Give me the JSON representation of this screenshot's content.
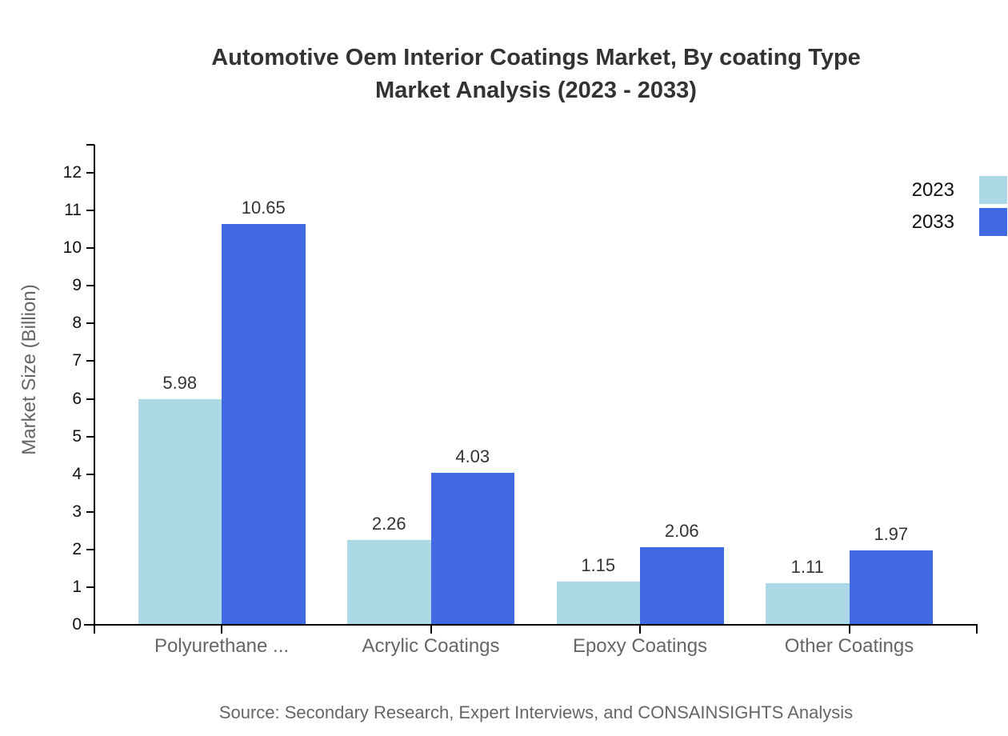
{
  "chart_data": {
    "type": "bar",
    "title_line1": "Automotive Oem Interior Coatings Market, By coating Type",
    "title_line2": "Market Analysis (2023 - 2033)",
    "categories": [
      "Polyurethane ...",
      "Acrylic Coatings",
      "Epoxy Coatings",
      "Other Coatings"
    ],
    "series": [
      {
        "name": "2023",
        "color": "#ADD8E6",
        "values": [
          5.98,
          2.26,
          1.15,
          1.11
        ]
      },
      {
        "name": "2033",
        "color": "#4169E1",
        "values": [
          10.65,
          4.03,
          2.06,
          1.97
        ]
      }
    ],
    "xlabel": "",
    "ylabel": "Market Size (Billion)",
    "ylim": [
      0,
      12.75
    ],
    "yticks": [
      0,
      1,
      2,
      3,
      4,
      5,
      6,
      7,
      8,
      9,
      10,
      11,
      12
    ],
    "grid": false,
    "legend_position": "top-right",
    "value_labels_shown": true
  },
  "source_note": "Source: Secondary Research, Expert Interviews, and CONSAINSIGHTS Analysis",
  "colors": {
    "background": "#ffffff",
    "title_text": "#333333",
    "tick_text": "#111111",
    "value_text": "#333333",
    "muted_text": "#666666",
    "axis": "#000000",
    "series_2023": "#ADD8E6",
    "series_2033": "#4169E1"
  }
}
